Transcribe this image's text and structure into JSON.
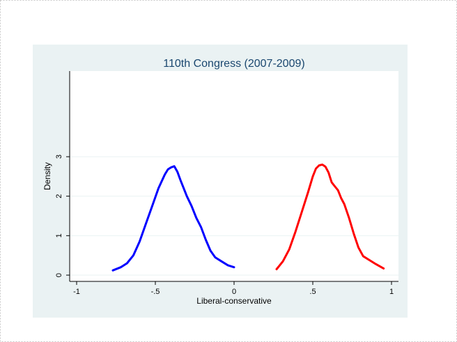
{
  "chart_data": {
    "type": "line",
    "title": "110th Congress (2007-2009)",
    "xlabel": "Liberal-conservative",
    "ylabel": "Density",
    "xlim": [
      -1,
      1
    ],
    "ylim": [
      0,
      3
    ],
    "x_ticks": [
      -1,
      -0.5,
      0,
      0.5,
      1
    ],
    "x_tick_labels": [
      "-1",
      "-.5",
      "0",
      ".5",
      "1"
    ],
    "y_ticks": [
      0,
      1,
      2,
      3
    ],
    "y_tick_labels": [
      "0",
      "1",
      "2",
      "3"
    ],
    "grid": "horizontal",
    "legend": "none",
    "series": [
      {
        "color": "#0000ff",
        "points": [
          [
            -0.77,
            0.12
          ],
          [
            -0.72,
            0.2
          ],
          [
            -0.68,
            0.3
          ],
          [
            -0.64,
            0.5
          ],
          [
            -0.6,
            0.85
          ],
          [
            -0.56,
            1.3
          ],
          [
            -0.52,
            1.75
          ],
          [
            -0.48,
            2.2
          ],
          [
            -0.44,
            2.55
          ],
          [
            -0.42,
            2.68
          ],
          [
            -0.4,
            2.73
          ],
          [
            -0.38,
            2.76
          ],
          [
            -0.36,
            2.62
          ],
          [
            -0.34,
            2.4
          ],
          [
            -0.32,
            2.2
          ],
          [
            -0.3,
            2.0
          ],
          [
            -0.27,
            1.75
          ],
          [
            -0.24,
            1.45
          ],
          [
            -0.21,
            1.22
          ],
          [
            -0.18,
            0.9
          ],
          [
            -0.15,
            0.62
          ],
          [
            -0.12,
            0.45
          ],
          [
            -0.08,
            0.35
          ],
          [
            -0.04,
            0.25
          ],
          [
            0.0,
            0.2
          ]
        ]
      },
      {
        "color": "#ff0000",
        "points": [
          [
            0.27,
            0.15
          ],
          [
            0.31,
            0.35
          ],
          [
            0.35,
            0.65
          ],
          [
            0.39,
            1.1
          ],
          [
            0.43,
            1.6
          ],
          [
            0.47,
            2.1
          ],
          [
            0.5,
            2.5
          ],
          [
            0.52,
            2.7
          ],
          [
            0.54,
            2.78
          ],
          [
            0.56,
            2.8
          ],
          [
            0.58,
            2.75
          ],
          [
            0.6,
            2.6
          ],
          [
            0.62,
            2.35
          ],
          [
            0.64,
            2.25
          ],
          [
            0.66,
            2.15
          ],
          [
            0.68,
            1.95
          ],
          [
            0.7,
            1.8
          ],
          [
            0.73,
            1.45
          ],
          [
            0.76,
            1.05
          ],
          [
            0.79,
            0.7
          ],
          [
            0.82,
            0.48
          ],
          [
            0.86,
            0.38
          ],
          [
            0.9,
            0.28
          ],
          [
            0.95,
            0.17
          ]
        ]
      }
    ]
  }
}
